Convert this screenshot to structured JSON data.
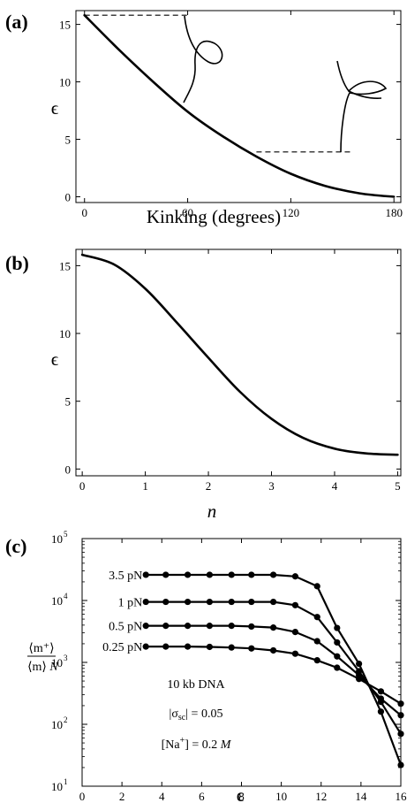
{
  "chart_data": [
    {
      "panel": "(a)",
      "type": "line",
      "xlabel": "Kinking (degrees)",
      "ylabel": "ϵ",
      "xlim": [
        -5,
        184
      ],
      "ylim": [
        -0.5,
        16.2
      ],
      "xticks": [
        0,
        60,
        120,
        180
      ],
      "yticks": [
        0,
        5,
        10,
        15
      ],
      "series": [
        {
          "x": [
            0,
            20,
            40,
            60,
            80,
            100,
            120,
            140,
            160,
            180
          ],
          "y": [
            15.8,
            12.8,
            10.0,
            7.4,
            5.3,
            3.5,
            2.0,
            0.95,
            0.3,
            0.0
          ]
        }
      ],
      "reference_lines": [
        {
          "y": 15.8,
          "x": [
            0,
            60
          ]
        },
        {
          "y": 3.9,
          "x": [
            100,
            155
          ]
        }
      ]
    },
    {
      "panel": "(b)",
      "type": "line",
      "xlabel": "n",
      "ylabel": "ϵ",
      "xlim": [
        -0.1,
        5.05
      ],
      "ylim": [
        -0.5,
        16.2
      ],
      "xticks": [
        0,
        1,
        2,
        3,
        4,
        5
      ],
      "yticks": [
        0,
        5,
        10,
        15
      ],
      "series": [
        {
          "x": [
            0,
            0.5,
            1,
            1.5,
            2,
            2.5,
            3,
            3.5,
            4,
            4.5,
            5
          ],
          "y": [
            15.8,
            15.1,
            13.3,
            10.8,
            8.2,
            5.7,
            3.7,
            2.3,
            1.5,
            1.15,
            1.05
          ]
        }
      ]
    },
    {
      "panel": "(c)",
      "type": "line",
      "xlabel": "ϵ",
      "ylabel": "⟨m⁺⟩ / ⟨m⟩ / N",
      "xlim": [
        0,
        16
      ],
      "ylim": [
        10,
        100000
      ],
      "yscale": "log",
      "xticks": [
        0,
        2,
        4,
        6,
        8,
        10,
        12,
        14,
        16
      ],
      "yticks": [
        "10^1",
        "10^2",
        "10^3",
        "10^4",
        "10^5"
      ],
      "series": [
        {
          "name": "3.5 pN",
          "x": [
            3.2,
            4.2,
            5.3,
            6.4,
            7.5,
            8.5,
            9.6,
            10.7,
            11.8,
            12.8,
            13.9,
            15.0,
            16.0
          ],
          "y": [
            26000,
            26000,
            26000,
            26000,
            26000,
            26000,
            26000,
            24500,
            17000,
            3600,
            950,
            160,
            22
          ]
        },
        {
          "name": "1 pN",
          "x": [
            3.2,
            4.2,
            5.3,
            6.4,
            7.5,
            8.5,
            9.6,
            10.7,
            11.8,
            12.8,
            13.9,
            15.0,
            16.0
          ],
          "y": [
            9500,
            9500,
            9500,
            9500,
            9500,
            9500,
            9500,
            8400,
            5400,
            2100,
            720,
            230,
            70
          ]
        },
        {
          "name": "0.5 pN",
          "x": [
            3.2,
            4.2,
            5.3,
            6.4,
            7.5,
            8.5,
            9.6,
            10.7,
            11.8,
            12.8,
            13.9,
            15.0,
            16.0
          ],
          "y": [
            3900,
            3900,
            3900,
            3900,
            3900,
            3800,
            3650,
            3100,
            2200,
            1250,
            620,
            260,
            140
          ]
        },
        {
          "name": "0.25 pN",
          "x": [
            3.2,
            4.2,
            5.3,
            6.4,
            7.5,
            8.5,
            9.6,
            10.7,
            11.8,
            12.8,
            13.9,
            15.0,
            16.0
          ],
          "y": [
            1800,
            1800,
            1800,
            1780,
            1740,
            1680,
            1560,
            1380,
            1080,
            820,
            540,
            340,
            215
          ]
        }
      ],
      "annotations": [
        "10 kb DNA",
        "|σsc| = 0.05",
        "[Na⁺] = 0.2 M"
      ]
    }
  ],
  "labels": {
    "panel_a": "(a)",
    "panel_b": "(b)",
    "panel_c": "(c)",
    "xlabel_a": "Kinking (degrees)",
    "xlabel_b": "n",
    "xlabel_c": "ϵ",
    "ylabel_ab": "ϵ",
    "ylabel_c_num": "⟨m⁺⟩",
    "ylabel_c_den": "⟨m⟩",
    "ylabel_c_N": "N",
    "ann_dna": "10 kb DNA",
    "ann_sigma_pre": "|σ",
    "ann_sigma_sub": "sc",
    "ann_sigma_post": "| = 0.05",
    "ann_na_pre": "[Na",
    "ann_na_sup": "+",
    "ann_na_post": "] = 0.2 ",
    "ann_na_unit": "M"
  }
}
